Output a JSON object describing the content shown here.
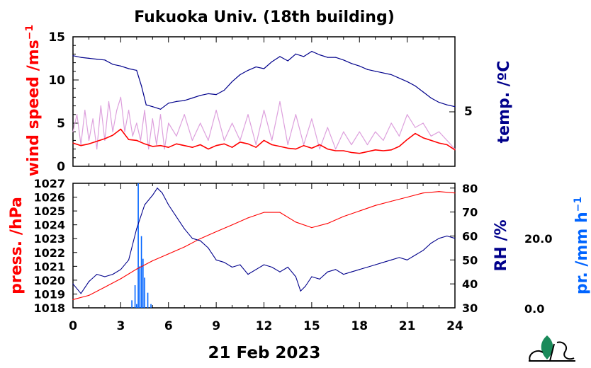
{
  "chart_data": [
    {
      "type": "line",
      "title": "Fukuoka Univ. (18th building)",
      "left_axis": {
        "label_main": "wind speed /ms",
        "label_sup": "−1",
        "ylim": [
          0,
          15
        ],
        "ticks": [
          "0",
          "5",
          "10",
          "15"
        ]
      },
      "right_axis": {
        "label": "temp. /ºC",
        "ticks": [
          "5"
        ]
      },
      "xlim": [
        0,
        24
      ],
      "series": [
        {
          "key": "wind_gust",
          "color": "#dda0dd",
          "x": [
            0.0,
            0.25,
            0.5,
            0.75,
            1.0,
            1.25,
            1.5,
            1.75,
            2.0,
            2.25,
            2.5,
            2.75,
            3.0,
            3.25,
            3.5,
            3.75,
            4.0,
            4.25,
            4.5,
            4.75,
            5.0,
            5.25,
            5.5,
            5.75,
            6.0,
            6.5,
            7.0,
            7.5,
            8.0,
            8.5,
            9.0,
            9.5,
            10.0,
            10.5,
            11.0,
            11.5,
            12.0,
            12.5,
            13.0,
            13.5,
            14.0,
            14.5,
            15.0,
            15.5,
            16.0,
            16.5,
            17.0,
            17.5,
            18.0,
            18.5,
            19.0,
            19.5,
            20.0,
            20.5,
            21.0,
            21.5,
            22.0,
            22.5,
            23.0,
            23.5,
            24.0
          ],
          "y": [
            4.0,
            6.0,
            2.5,
            6.5,
            3.0,
            5.5,
            2.0,
            7.0,
            3.0,
            7.5,
            4.0,
            6.5,
            8.0,
            4.0,
            6.5,
            3.5,
            5.0,
            3.0,
            6.5,
            2.0,
            5.5,
            2.5,
            6.0,
            2.0,
            5.0,
            3.5,
            6.0,
            3.0,
            5.0,
            3.0,
            6.5,
            3.0,
            5.0,
            3.0,
            6.0,
            2.5,
            6.5,
            3.0,
            7.5,
            2.5,
            6.0,
            2.5,
            5.5,
            2.0,
            4.5,
            2.0,
            4.0,
            2.5,
            4.0,
            2.5,
            4.0,
            3.0,
            5.0,
            3.5,
            6.0,
            4.5,
            5.0,
            3.5,
            4.0,
            3.0,
            2.0
          ]
        },
        {
          "key": "wind_mean",
          "color": "#ff0000",
          "x": [
            0.0,
            0.5,
            1.0,
            1.5,
            2.0,
            2.5,
            3.0,
            3.5,
            4.0,
            4.5,
            5.0,
            5.5,
            6.0,
            6.5,
            7.0,
            7.5,
            8.0,
            8.5,
            9.0,
            9.5,
            10.0,
            10.5,
            11.0,
            11.5,
            12.0,
            12.5,
            13.0,
            13.5,
            14.0,
            14.5,
            15.0,
            15.5,
            16.0,
            16.5,
            17.0,
            17.5,
            18.0,
            18.5,
            19.0,
            19.5,
            20.0,
            20.5,
            21.0,
            21.5,
            22.0,
            22.5,
            23.0,
            23.5,
            24.0
          ],
          "y": [
            2.7,
            2.4,
            2.6,
            2.9,
            3.2,
            3.6,
            4.3,
            3.1,
            3.0,
            2.6,
            2.3,
            2.4,
            2.2,
            2.6,
            2.4,
            2.2,
            2.5,
            2.0,
            2.4,
            2.6,
            2.2,
            2.8,
            2.6,
            2.2,
            3.0,
            2.5,
            2.3,
            2.1,
            2.0,
            2.4,
            2.1,
            2.5,
            2.0,
            1.8,
            1.8,
            1.6,
            1.5,
            1.7,
            1.9,
            1.8,
            1.9,
            2.3,
            3.1,
            3.8,
            3.3,
            3.0,
            2.7,
            2.5,
            1.9
          ]
        },
        {
          "key": "temperature",
          "color": "#00008b",
          "x": [
            0.0,
            0.5,
            1.0,
            1.5,
            2.0,
            2.5,
            3.0,
            3.5,
            4.0,
            4.3,
            4.6,
            5.0,
            5.5,
            6.0,
            6.5,
            7.0,
            7.5,
            8.0,
            8.5,
            9.0,
            9.5,
            10.0,
            10.5,
            11.0,
            11.5,
            12.0,
            12.5,
            13.0,
            13.5,
            14.0,
            14.5,
            15.0,
            15.5,
            16.0,
            16.5,
            17.0,
            17.5,
            18.0,
            18.5,
            19.0,
            19.5,
            20.0,
            20.5,
            21.0,
            21.5,
            22.0,
            22.5,
            23.0,
            23.5,
            24.0
          ],
          "y": [
            11.5,
            11.3,
            11.2,
            11.1,
            11.0,
            10.5,
            10.3,
            10.0,
            9.8,
            8.0,
            5.8,
            5.6,
            5.3,
            6.0,
            6.2,
            6.3,
            6.6,
            6.9,
            7.1,
            7.0,
            7.5,
            8.5,
            9.3,
            9.8,
            10.2,
            10.0,
            10.8,
            11.4,
            10.9,
            11.7,
            11.4,
            12.0,
            11.6,
            11.3,
            11.3,
            11.0,
            10.6,
            10.3,
            9.9,
            9.7,
            9.5,
            9.3,
            8.9,
            8.5,
            8.0,
            7.3,
            6.6,
            6.1,
            5.8,
            5.6
          ]
        }
      ]
    },
    {
      "type": "line",
      "left_axis": {
        "label": "press. /hPa",
        "ylim": [
          1018,
          1027
        ],
        "ticks": [
          "1018",
          "1019",
          "1020",
          "1021",
          "1022",
          "1023",
          "1024",
          "1025",
          "1026",
          "1027"
        ]
      },
      "right_axis": {
        "label": "RH /%",
        "ylim": [
          30,
          82
        ],
        "ticks": [
          "30",
          "40",
          "50",
          "60",
          "70",
          "80"
        ]
      },
      "far_right_axis": {
        "label_main": "pr. /mm h",
        "label_sup": "−1",
        "ticks": [
          "0.0",
          "20.0"
        ]
      },
      "xlim": [
        0,
        24
      ],
      "xticks": [
        "0",
        "3",
        "6",
        "9",
        "12",
        "15",
        "18",
        "21",
        "24"
      ],
      "xlabel": "21 Feb 2023",
      "series": [
        {
          "key": "pressure",
          "color": "#ff0000",
          "x": [
            0.0,
            1.0,
            2.0,
            3.0,
            4.0,
            5.0,
            6.0,
            7.0,
            8.0,
            9.0,
            10.0,
            11.0,
            12.0,
            13.0,
            14.0,
            15.0,
            16.0,
            17.0,
            18.0,
            19.0,
            20.0,
            21.0,
            22.0,
            23.0,
            24.0
          ],
          "y": [
            1018.6,
            1018.9,
            1019.5,
            1020.1,
            1020.8,
            1021.4,
            1021.9,
            1022.4,
            1023.0,
            1023.5,
            1024.0,
            1024.5,
            1024.9,
            1024.9,
            1024.2,
            1023.8,
            1024.1,
            1024.6,
            1025.0,
            1025.4,
            1025.7,
            1026.0,
            1026.3,
            1026.4,
            1026.3
          ]
        },
        {
          "key": "humidity",
          "color": "#00008b",
          "x": [
            0.0,
            0.5,
            1.0,
            1.5,
            2.0,
            2.5,
            3.0,
            3.5,
            4.0,
            4.5,
            5.0,
            5.3,
            5.6,
            6.0,
            6.5,
            7.0,
            7.5,
            8.0,
            8.5,
            9.0,
            9.5,
            10.0,
            10.5,
            11.0,
            11.5,
            12.0,
            12.5,
            13.0,
            13.5,
            14.0,
            14.3,
            14.6,
            15.0,
            15.5,
            16.0,
            16.5,
            17.0,
            17.5,
            18.0,
            18.5,
            19.0,
            19.5,
            20.0,
            20.5,
            21.0,
            21.5,
            22.0,
            22.5,
            23.0,
            23.5,
            24.0
          ],
          "y": [
            40,
            36,
            41,
            44,
            43,
            44,
            46,
            50,
            63,
            73,
            77,
            80,
            78,
            73,
            68,
            63,
            59,
            58,
            55,
            50,
            49,
            47,
            48,
            44,
            46,
            48,
            47,
            45,
            47,
            43,
            37,
            39,
            43,
            42,
            45,
            46,
            44,
            45,
            46,
            47,
            48,
            49,
            50,
            51,
            50,
            52,
            54,
            57,
            59,
            60,
            59
          ]
        },
        {
          "key": "precipitation",
          "color": "#0064ff",
          "ylim": [
            0,
            33
          ],
          "x": [
            3.7,
            3.9,
            4.0,
            4.1,
            4.2,
            4.3,
            4.4,
            4.5,
            4.7,
            4.9
          ],
          "y": [
            2,
            6,
            1,
            33,
            11,
            19,
            13,
            8,
            4,
            1
          ]
        }
      ]
    }
  ]
}
